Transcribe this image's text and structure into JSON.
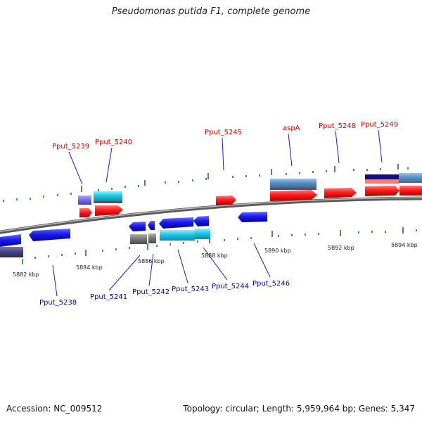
{
  "title": "Pseudomonas putida F1, complete genome",
  "footer": {
    "accession": "Accession: NC_009512",
    "summary": "Topology: circular; Length: 5,959,964 bp; Genes: 5,347"
  },
  "scale_ticks": [
    "5882 kbp",
    "5884 kbp",
    "5886 kbp",
    "5888 kbp",
    "5890 kbp",
    "5892 kbp",
    "5894 kbp"
  ],
  "genes_forward": [
    "Pput_5239",
    "Pput_5240",
    "Pput_5245",
    "aspA",
    "Pput_5248",
    "Pput_5249"
  ],
  "genes_reverse": [
    "Pput_5238",
    "Pput_5241",
    "Pput_5242",
    "Pput_5243",
    "Pput_5244",
    "Pput_5246"
  ],
  "colors": {
    "label_forward": "#d00000",
    "label_reverse": "#0000b8",
    "cds_forward": "#ff1a1a",
    "cds_reverse": "#1a1aee",
    "backbone": "#888888",
    "tick_marks": "#1a7a1a"
  }
}
